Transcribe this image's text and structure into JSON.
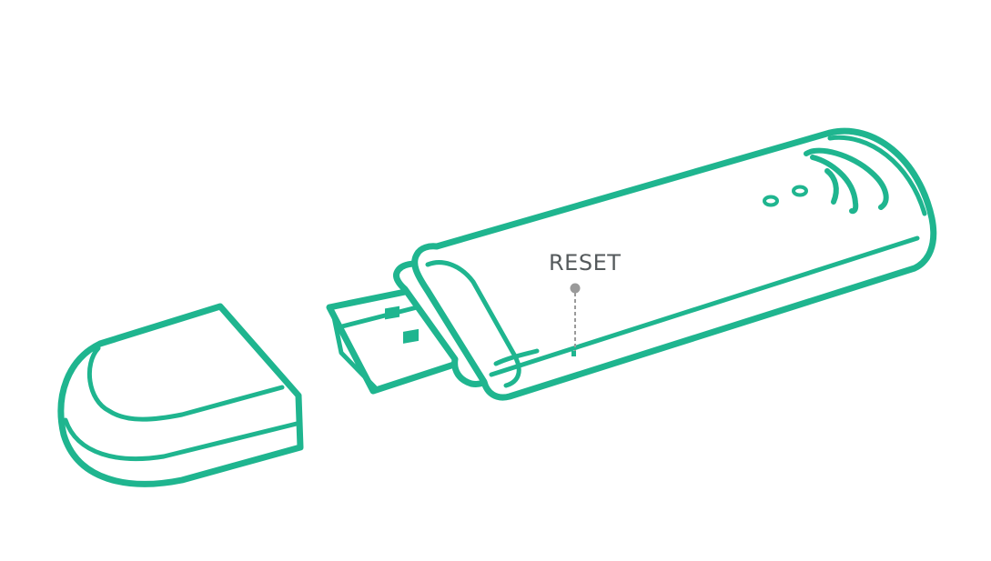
{
  "callout": {
    "reset_label": "RESET"
  },
  "colors": {
    "outline": "#1fb58f",
    "label": "#555a5c",
    "leader_line": "#9a9a9a",
    "background": "#ffffff"
  },
  "icons": {
    "signal": "wireless-signal-icon",
    "leds": "status-led-icon"
  }
}
